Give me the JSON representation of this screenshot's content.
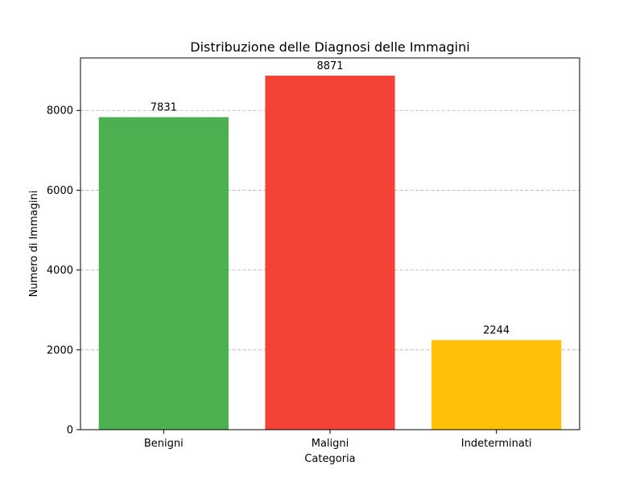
{
  "chart_data": {
    "type": "bar",
    "title": "Distribuzione delle Diagnosi delle Immagini",
    "xlabel": "Categoria",
    "ylabel": "Numero di Immagini",
    "categories": [
      "Benigni",
      "Maligni",
      "Indeterminati"
    ],
    "values": [
      7831,
      8871,
      2244
    ],
    "data_labels": [
      "7831",
      "8871",
      "2244"
    ],
    "colors": [
      "#4caf50",
      "#f44336",
      "#ffc107"
    ],
    "ylim": [
      0,
      9315
    ],
    "yticks": [
      0,
      2000,
      4000,
      6000,
      8000
    ],
    "ytick_labels": [
      "0",
      "2000",
      "4000",
      "6000",
      "8000"
    ],
    "grid": "y-dashed",
    "legend": "none"
  }
}
